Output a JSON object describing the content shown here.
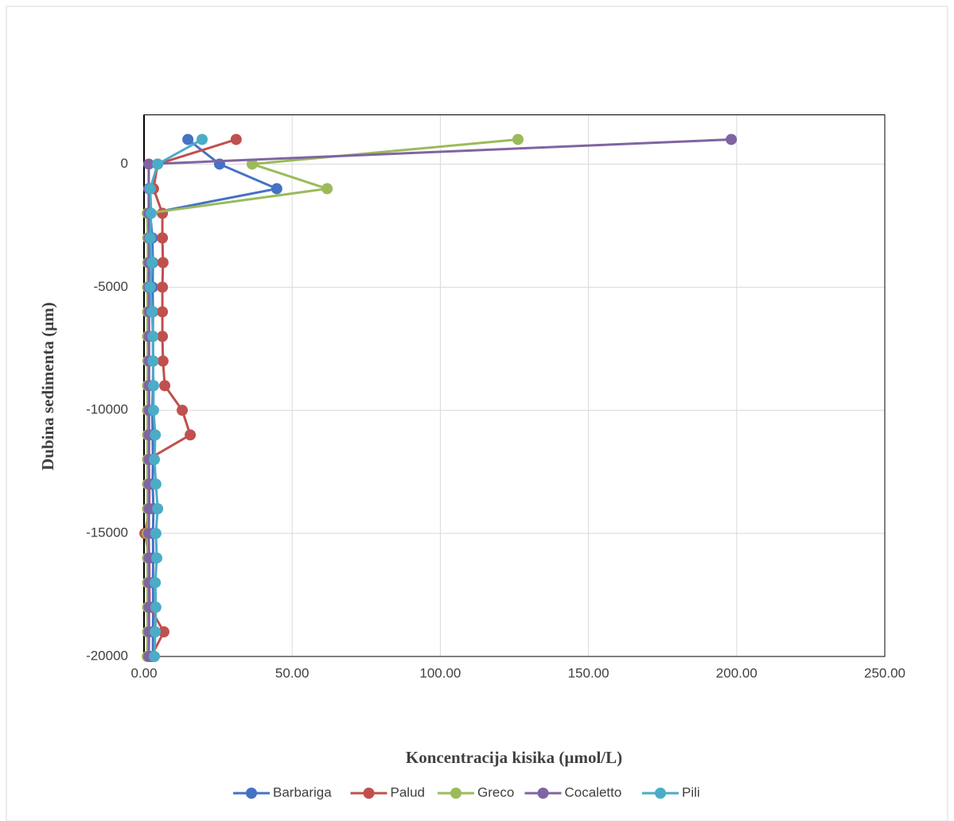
{
  "chart_data": {
    "type": "line",
    "x_label": "Koncentracija kisika (µmol/L)",
    "y_label": "Dubina sedimenta (µm)",
    "y": [
      1000,
      0,
      -1000,
      -2000,
      -3000,
      -4000,
      -5000,
      -6000,
      -7000,
      -8000,
      -9000,
      -10000,
      -11000,
      -12000,
      -13000,
      -14000,
      -15000,
      -16000,
      -17000,
      -18000,
      -19000,
      -20000
    ],
    "series": [
      {
        "name": "Barbariga",
        "color": "#4472c4",
        "x": [
          14.8,
          25.5,
          44.8,
          2.1,
          2.8,
          3.0,
          2.9,
          3.0,
          3.0,
          3.1,
          3.0,
          2.8,
          2.9,
          3.0,
          2.9,
          3.2,
          3.0,
          3.1,
          3.0,
          3.1,
          3.0,
          3.0
        ]
      },
      {
        "name": "Palud",
        "color": "#c0504d",
        "x": [
          31.1,
          4.6,
          3.2,
          6.2,
          6.2,
          6.4,
          6.2,
          6.2,
          6.2,
          6.4,
          7.0,
          12.9,
          15.6,
          1.3,
          1.8,
          1.8,
          0.3,
          1.8,
          1.8,
          1.9,
          6.7,
          2.4
        ]
      },
      {
        "name": "Greco",
        "color": "#9bbb59",
        "x": [
          126.2,
          36.5,
          61.8,
          1.1,
          1.3,
          1.3,
          1.2,
          1.2,
          1.2,
          1.3,
          1.2,
          1.2,
          1.2,
          1.2,
          1.2,
          1.2,
          1.1,
          1.2,
          1.2,
          1.2,
          1.2,
          1.1
        ]
      },
      {
        "name": "Cocaletto",
        "color": "#8064a2",
        "x": [
          198.2,
          1.6,
          1.6,
          1.6,
          1.7,
          1.7,
          1.6,
          1.7,
          1.7,
          1.7,
          1.7,
          1.7,
          1.7,
          1.7,
          1.7,
          1.7,
          1.6,
          1.7,
          1.7,
          1.7,
          1.7,
          1.6
        ]
      },
      {
        "name": "Pili",
        "color": "#4bacc6",
        "x": [
          19.6,
          4.6,
          2.1,
          2.4,
          2.1,
          2.7,
          2.1,
          2.7,
          3.0,
          3.0,
          3.2,
          3.2,
          3.8,
          3.5,
          4.0,
          4.6,
          4.0,
          4.3,
          3.8,
          4.0,
          3.8,
          3.5
        ]
      }
    ],
    "xlim": [
      0,
      250
    ],
    "xticks": [
      {
        "value": 0,
        "label": "0.00"
      },
      {
        "value": 50,
        "label": "50.00"
      },
      {
        "value": 100,
        "label": "100.00"
      },
      {
        "value": 150,
        "label": "150.00"
      },
      {
        "value": 200,
        "label": "200.00"
      },
      {
        "value": 250,
        "label": "250.00"
      }
    ],
    "ylim": [
      -20000,
      2000
    ],
    "yticks": [
      0,
      -5000,
      -10000,
      -15000,
      -20000
    ],
    "grid": true,
    "legend": "bottom"
  }
}
